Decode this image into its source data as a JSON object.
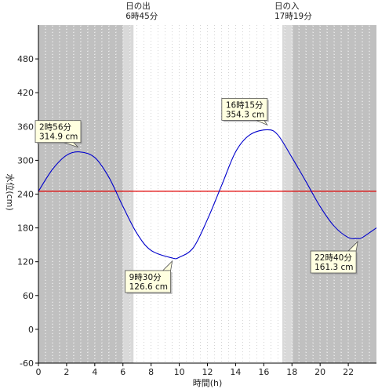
{
  "chart_data": {
    "type": "line",
    "xlabel": "時間(h)",
    "ylabel": "水位(cm)",
    "xlim": [
      0,
      24
    ],
    "ylim": [
      -60,
      540
    ],
    "x_ticks": [
      0,
      2,
      4,
      6,
      8,
      10,
      12,
      14,
      16,
      18,
      20,
      22
    ],
    "y_ticks": [
      -60,
      0,
      60,
      120,
      180,
      240,
      300,
      360,
      420,
      480
    ],
    "grid": {
      "vertical_minor_dotted": true,
      "horizontal": false
    },
    "reference_line": {
      "y": 245,
      "color": "#e00000"
    },
    "series": [
      {
        "color": "#0000cc",
        "points": [
          [
            0,
            245
          ],
          [
            1,
            284
          ],
          [
            2,
            309
          ],
          [
            2.93,
            314.9
          ],
          [
            4,
            305
          ],
          [
            5,
            270
          ],
          [
            6,
            218
          ],
          [
            7,
            170
          ],
          [
            8,
            140
          ],
          [
            9.5,
            126.6
          ],
          [
            10,
            128
          ],
          [
            11,
            145
          ],
          [
            12,
            195
          ],
          [
            13,
            255
          ],
          [
            14,
            315
          ],
          [
            15,
            345
          ],
          [
            16.25,
            354.3
          ],
          [
            17,
            345
          ],
          [
            18,
            305
          ],
          [
            19,
            262
          ],
          [
            20,
            218
          ],
          [
            21,
            183
          ],
          [
            22,
            163
          ],
          [
            22.67,
            161.3
          ],
          [
            23,
            163
          ],
          [
            24,
            180
          ]
        ]
      }
    ],
    "annotations": [
      {
        "time": "2時56分",
        "value": "314.9 cm",
        "x": 2.93,
        "y": 314.9,
        "placement": "left-above"
      },
      {
        "time": "9時30分",
        "value": "126.6 cm",
        "x": 9.5,
        "y": 126.6,
        "placement": "below-left"
      },
      {
        "time": "16時15分",
        "value": "354.3 cm",
        "x": 16.25,
        "y": 354.3,
        "placement": "above-left"
      },
      {
        "time": "22時40分",
        "value": "161.3 cm",
        "x": 22.67,
        "y": 161.3,
        "placement": "below-left"
      }
    ],
    "sun": {
      "sunrise": {
        "label": "日の出",
        "time": "6時45分",
        "x": 6.75
      },
      "sunset": {
        "label": "日の入",
        "time": "17時19分",
        "x": 17.3167
      },
      "night_color": "#c0c0c0",
      "twilight_color": "#d9d9d9"
    }
  }
}
